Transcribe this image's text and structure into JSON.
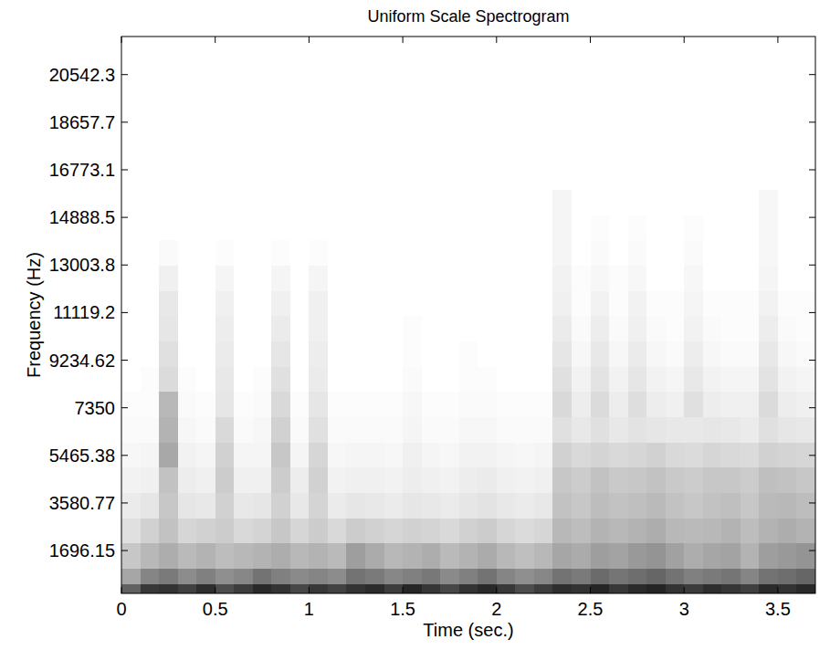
{
  "chart_data": {
    "type": "heatmap",
    "title": "Uniform Scale Spectrogram",
    "x_label": "Time (sec.)",
    "y_label": "Frequency (Hz)",
    "xlim": [
      0,
      3.7
    ],
    "ylim": [
      0,
      22050
    ],
    "xticks": [
      0,
      0.5,
      1,
      1.5,
      2,
      2.5,
      3,
      3.5
    ],
    "yticks": [
      1696.15,
      3580.77,
      5465.38,
      7350,
      9234.62,
      11119.2,
      13003.8,
      14888.5,
      16773.1,
      18657.7,
      20542.3
    ],
    "grid": false,
    "zlim": [
      0,
      100
    ],
    "x_edges": [
      0,
      0.1,
      0.2,
      0.3,
      0.4,
      0.5,
      0.6,
      0.7,
      0.8,
      0.9,
      1,
      1.1,
      1.2,
      1.3,
      1.4,
      1.5,
      1.6,
      1.7,
      1.8,
      1.9,
      2,
      2.1,
      2.2,
      2.3,
      2.4,
      2.5,
      2.6,
      2.7,
      2.8,
      2.9,
      3,
      3.1,
      3.2,
      3.3,
      3.4,
      3.5,
      3.6,
      3.7
    ],
    "y_edges": [
      0,
      400,
      1000,
      2000,
      3000,
      4000,
      5000,
      6000,
      7000,
      8000,
      9000,
      10000,
      11000,
      12000,
      13000,
      14000,
      15000,
      16000,
      22050
    ],
    "cells": [
      [
        62,
        78,
        80,
        75,
        82,
        70,
        76,
        84,
        80,
        72,
        78,
        74,
        80,
        83,
        76,
        85,
        79,
        72,
        80,
        84,
        78,
        70,
        76,
        82,
        80,
        85,
        78,
        83,
        86,
        80,
        77,
        82,
        79,
        75,
        83,
        80,
        84
      ],
      [
        35,
        48,
        52,
        45,
        50,
        44,
        47,
        55,
        50,
        46,
        48,
        45,
        55,
        52,
        47,
        50,
        53,
        46,
        50,
        55,
        48,
        44,
        47,
        55,
        52,
        58,
        54,
        57,
        60,
        55,
        50,
        52,
        54,
        48,
        55,
        57,
        60
      ],
      [
        22,
        28,
        32,
        27,
        30,
        26,
        28,
        30,
        32,
        28,
        30,
        27,
        38,
        33,
        28,
        30,
        32,
        27,
        30,
        33,
        28,
        25,
        28,
        35,
        33,
        38,
        36,
        40,
        42,
        37,
        32,
        35,
        36,
        30,
        38,
        40,
        42
      ],
      [
        12,
        18,
        24,
        16,
        18,
        20,
        15,
        17,
        22,
        16,
        20,
        15,
        20,
        18,
        16,
        18,
        17,
        15,
        18,
        20,
        16,
        14,
        16,
        28,
        26,
        30,
        28,
        30,
        32,
        28,
        27,
        28,
        30,
        26,
        30,
        32,
        30
      ],
      [
        8,
        10,
        22,
        10,
        9,
        18,
        9,
        10,
        18,
        9,
        17,
        8,
        10,
        9,
        8,
        10,
        9,
        8,
        10,
        11,
        9,
        8,
        9,
        24,
        22,
        26,
        24,
        25,
        27,
        24,
        22,
        24,
        25,
        22,
        27,
        28,
        26
      ],
      [
        5,
        6,
        24,
        7,
        6,
        20,
        6,
        6,
        20,
        7,
        18,
        5,
        6,
        6,
        5,
        7,
        6,
        5,
        7,
        8,
        6,
        5,
        6,
        22,
        20,
        24,
        21,
        22,
        24,
        21,
        20,
        22,
        22,
        20,
        25,
        24,
        22
      ],
      [
        3,
        4,
        34,
        5,
        4,
        18,
        4,
        4,
        22,
        4,
        16,
        3,
        4,
        4,
        3,
        6,
        4,
        3,
        5,
        5,
        4,
        3,
        4,
        18,
        15,
        17,
        15,
        16,
        18,
        15,
        14,
        16,
        15,
        14,
        18,
        17,
        16
      ],
      [
        2,
        2,
        30,
        3,
        2,
        15,
        2,
        3,
        18,
        2,
        12,
        2,
        2,
        2,
        2,
        4,
        2,
        2,
        3,
        3,
        2,
        2,
        2,
        12,
        9,
        12,
        9,
        11,
        10,
        9,
        9,
        10,
        9,
        8,
        12,
        10,
        9
      ],
      [
        1,
        1,
        28,
        2,
        1,
        10,
        1,
        2,
        15,
        1,
        10,
        1,
        1,
        1,
        1,
        3,
        1,
        1,
        2,
        2,
        1,
        1,
        1,
        15,
        7,
        14,
        7,
        13,
        7,
        6,
        12,
        7,
        6,
        6,
        14,
        7,
        6
      ],
      [
        0,
        1,
        14,
        1,
        0,
        9,
        0,
        1,
        12,
        0,
        8,
        0,
        0,
        0,
        0,
        2,
        0,
        0,
        1,
        1,
        0,
        0,
        0,
        12,
        5,
        11,
        5,
        10,
        5,
        4,
        9,
        5,
        4,
        4,
        11,
        5,
        4
      ],
      [
        0,
        0,
        12,
        0,
        0,
        8,
        0,
        0,
        10,
        0,
        7,
        0,
        0,
        0,
        0,
        1,
        0,
        0,
        1,
        0,
        0,
        0,
        0,
        10,
        3,
        9,
        3,
        8,
        3,
        2,
        7,
        3,
        2,
        2,
        9,
        3,
        2
      ],
      [
        0,
        0,
        10,
        0,
        0,
        7,
        0,
        0,
        8,
        0,
        6,
        0,
        0,
        0,
        0,
        1,
        0,
        0,
        0,
        0,
        0,
        0,
        0,
        8,
        2,
        7,
        2,
        6,
        2,
        1,
        5,
        2,
        1,
        1,
        7,
        2,
        1
      ],
      [
        0,
        0,
        9,
        0,
        0,
        6,
        0,
        0,
        6,
        0,
        6,
        0,
        0,
        0,
        0,
        0,
        0,
        0,
        0,
        0,
        0,
        0,
        0,
        6,
        1,
        5,
        1,
        5,
        1,
        1,
        4,
        1,
        1,
        1,
        5,
        1,
        1
      ],
      [
        0,
        0,
        6,
        0,
        0,
        4,
        0,
        0,
        4,
        0,
        4,
        0,
        0,
        0,
        0,
        0,
        0,
        0,
        0,
        0,
        0,
        0,
        0,
        5,
        1,
        3,
        1,
        3,
        0,
        0,
        3,
        0,
        0,
        0,
        4,
        0,
        0
      ],
      [
        0,
        0,
        2,
        0,
        0,
        1,
        0,
        0,
        1,
        0,
        1,
        0,
        0,
        0,
        0,
        0,
        0,
        0,
        0,
        0,
        0,
        0,
        0,
        4,
        0,
        2,
        0,
        2,
        0,
        0,
        2,
        0,
        0,
        0,
        3,
        0,
        0
      ],
      [
        0,
        0,
        0,
        0,
        0,
        0,
        0,
        0,
        0,
        0,
        0,
        0,
        0,
        0,
        0,
        0,
        0,
        0,
        0,
        0,
        0,
        0,
        0,
        4,
        0,
        1,
        0,
        1,
        0,
        0,
        1,
        0,
        0,
        0,
        3,
        0,
        0
      ],
      [
        0,
        0,
        0,
        0,
        0,
        0,
        0,
        0,
        0,
        0,
        0,
        0,
        0,
        0,
        0,
        0,
        0,
        0,
        0,
        0,
        0,
        0,
        0,
        4,
        0,
        0,
        0,
        0,
        0,
        0,
        0,
        0,
        0,
        0,
        3,
        0,
        0
      ],
      [
        0,
        0,
        0,
        0,
        0,
        0,
        0,
        0,
        0,
        0,
        0,
        0,
        0,
        0,
        0,
        0,
        0,
        0,
        0,
        0,
        0,
        0,
        0,
        0,
        0,
        0,
        0,
        0,
        0,
        0,
        0,
        0,
        0,
        0,
        0,
        0,
        0
      ]
    ]
  }
}
